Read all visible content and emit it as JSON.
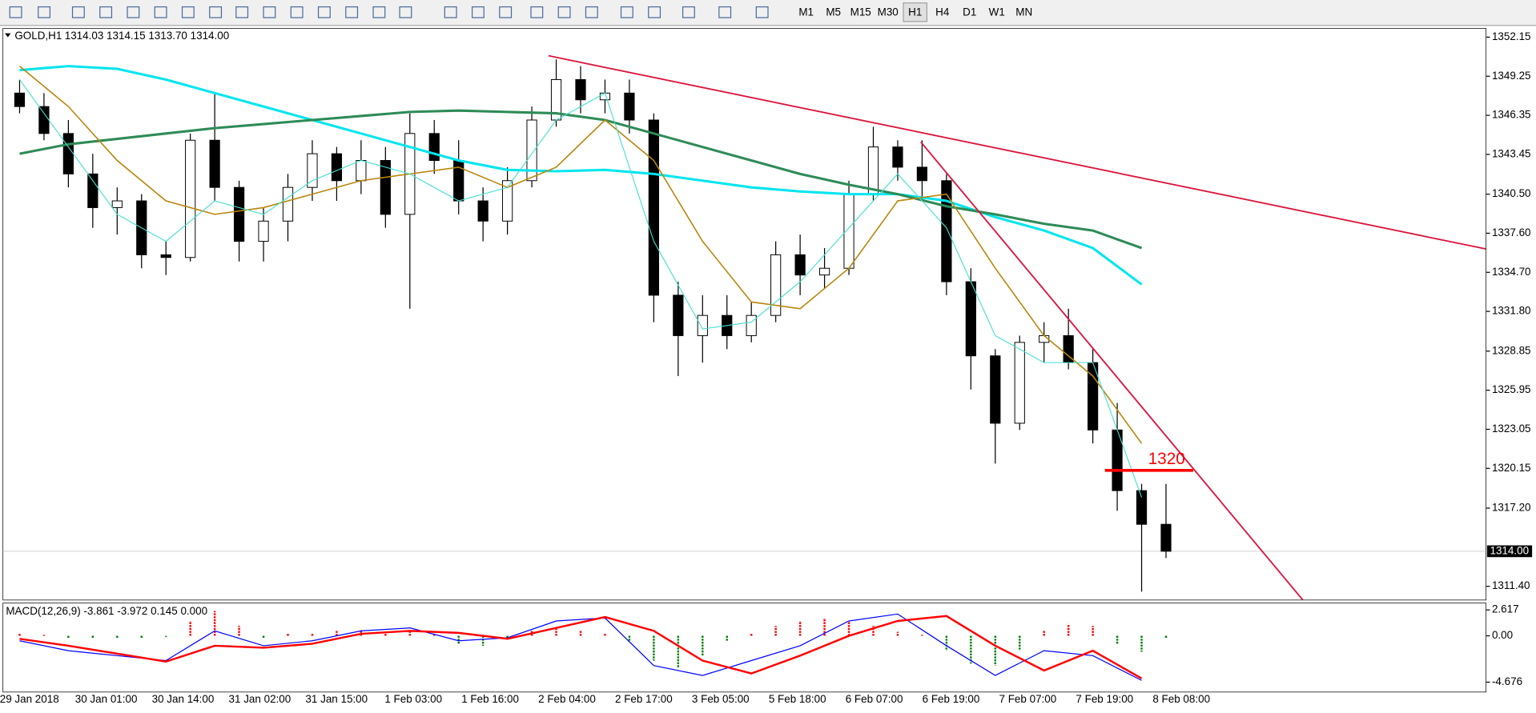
{
  "toolbar": {
    "timeframes": [
      "M1",
      "M5",
      "M15",
      "M30",
      "H1",
      "H4",
      "D1",
      "W1",
      "MN"
    ],
    "active": "H1"
  },
  "chart_data": {
    "type": "candlestick",
    "symbol": "GOLD,H1",
    "quote": "1314.03 1314.15 1313.70 1314.00",
    "ylim": [
      1310.38,
      1352.8
    ],
    "yticks": [
      {
        "value": 1352.15,
        "label": "1352.15"
      },
      {
        "value": 1349.25,
        "label": "1349.25"
      },
      {
        "value": 1346.35,
        "label": "1346.35"
      },
      {
        "value": 1343.45,
        "label": "1343.45"
      },
      {
        "value": 1340.5,
        "label": "1340.50"
      },
      {
        "value": 1337.6,
        "label": "1337.60"
      },
      {
        "value": 1334.7,
        "label": "1334.70"
      },
      {
        "value": 1331.8,
        "label": "1331.80"
      },
      {
        "value": 1328.85,
        "label": "1328.85"
      },
      {
        "value": 1325.95,
        "label": "1325.95"
      },
      {
        "value": 1323.05,
        "label": "1323.05"
      },
      {
        "value": 1320.15,
        "label": "1320.15"
      },
      {
        "value": 1317.2,
        "label": "1317.20"
      },
      {
        "value": 1311.4,
        "label": "1311.40"
      }
    ],
    "current_price": {
      "value": 1314,
      "label": "1314.00"
    },
    "x_labels": [
      "29 Jan 2018",
      "30 Jan 01:00",
      "30 Jan 14:00",
      "31 Jan 02:00",
      "31 Jan 15:00",
      "1 Feb 03:00",
      "1 Feb 16:00",
      "2 Feb 04:00",
      "2 Feb 17:00",
      "3 Feb 05:00",
      "5 Feb 18:00",
      "6 Feb 07:00",
      "6 Feb 19:00",
      "7 Feb 07:00",
      "7 Feb 19:00",
      "8 Feb 08:00"
    ],
    "candles": {
      "open": [
        1348,
        1347,
        1345,
        1342,
        1339.5,
        1340,
        1336,
        1335.8,
        1344.5,
        1341,
        1337,
        1338.5,
        1341,
        1343.5,
        1341.5,
        1343,
        1339,
        1345,
        1343,
        1340,
        1338.5,
        1341.5,
        1346,
        1349,
        1347.5,
        1348,
        1346,
        1333,
        1330,
        1331.5,
        1330,
        1331.5,
        1336,
        1334.5,
        1335,
        1340.5,
        1344,
        1342.5,
        1341.5,
        1334,
        1328.5,
        1323.5,
        1329.5,
        1330,
        1328,
        1323,
        1318.5,
        1316
      ],
      "high": [
        1349,
        1348,
        1346,
        1343.5,
        1341,
        1340.5,
        1337,
        1345,
        1348,
        1341.5,
        1339.5,
        1342,
        1344.5,
        1344,
        1344.5,
        1344,
        1346.5,
        1346,
        1344.5,
        1341,
        1342.5,
        1347,
        1350.5,
        1350,
        1349,
        1349,
        1346.5,
        1334,
        1333,
        1333,
        1332.5,
        1337,
        1337.5,
        1336.5,
        1341.5,
        1345.5,
        1344.5,
        1344.5,
        1342,
        1335,
        1329,
        1330,
        1331,
        1332,
        1329,
        1325,
        1319,
        1319
      ],
      "low": [
        1346.5,
        1344.5,
        1341,
        1338,
        1337.5,
        1335,
        1334.5,
        1335.5,
        1340,
        1335.5,
        1335.5,
        1337,
        1340,
        1340,
        1340.5,
        1338,
        1332,
        1342,
        1339,
        1337,
        1337.5,
        1341,
        1345.5,
        1346.5,
        1346.5,
        1345,
        1331,
        1327,
        1328,
        1329,
        1329.5,
        1331,
        1333,
        1333.5,
        1334.5,
        1340,
        1341.5,
        1340,
        1333,
        1326,
        1320.5,
        1323,
        1328,
        1327.5,
        1322,
        1317,
        1311,
        1313.5
      ],
      "close": [
        1347,
        1345,
        1342,
        1339.5,
        1340,
        1336,
        1335.8,
        1344.5,
        1341,
        1337,
        1338.5,
        1341,
        1343.5,
        1341.5,
        1343,
        1339,
        1345,
        1343,
        1340,
        1338.5,
        1341.5,
        1346,
        1349,
        1347.5,
        1348,
        1346,
        1333,
        1330,
        1331.5,
        1330,
        1331.5,
        1336,
        1334.5,
        1335,
        1340.5,
        1344,
        1342.5,
        1341.5,
        1334,
        1328.5,
        1323.5,
        1329.5,
        1330,
        1328,
        1323,
        1318.5,
        1316,
        1314
      ]
    },
    "series": [
      {
        "color": "#00e5ee",
        "width": 2.5,
        "values": [
          1349.7,
          1350,
          1349.8,
          1349,
          1348,
          1347,
          1346,
          1345,
          1344,
          1343,
          1342.3,
          1342.2,
          1342.3,
          1342,
          1341.5,
          1341,
          1340.7,
          1340.5,
          1340.5,
          1340,
          1338.8,
          1337.8,
          1336.5,
          1333.8
        ]
      },
      {
        "color": "#2e8b57",
        "width": 2.5,
        "values": [
          1343.5,
          1344.2,
          1344.6,
          1345,
          1345.4,
          1345.7,
          1346,
          1346.3,
          1346.6,
          1346.7,
          1346.6,
          1346.5,
          1346,
          1345,
          1344,
          1343,
          1342,
          1341.2,
          1340.5,
          1339.6,
          1339,
          1338.3,
          1337.8,
          1336.5
        ]
      },
      {
        "color": "#b8860b",
        "width": 1.3,
        "values": [
          1350,
          1347,
          1343,
          1340,
          1339,
          1339.5,
          1340.5,
          1341.5,
          1342,
          1342.5,
          1341,
          1342.5,
          1346,
          1343,
          1337,
          1332.5,
          1332,
          1335,
          1340,
          1340.5,
          1335,
          1330,
          1327,
          1322
        ]
      },
      {
        "color": "#40e0d0",
        "width": 0.9,
        "values": [
          1349,
          1344,
          1339,
          1337,
          1340,
          1339,
          1341.5,
          1343,
          1342,
          1340,
          1341,
          1346,
          1348,
          1337,
          1330.5,
          1331,
          1334,
          1338,
          1342,
          1338,
          1330,
          1328,
          1328,
          1318
        ]
      }
    ],
    "trendlines": [
      {
        "color": "#dc143c",
        "values": [
          1350.77,
          1336.43
        ]
      },
      {
        "color": "#dc143c",
        "values": [
          1344.37,
          1310.38
        ]
      }
    ],
    "level": {
      "label": "1320",
      "value": 1320,
      "color": "#ff0000"
    },
    "macd": {
      "title": "MACD(12,26,9) -3.861 -3.972 0.145 0.000",
      "ylim": [
        -5.676,
        3.317
      ],
      "yticks": [
        {
          "value": 2.617,
          "label": "2.617"
        },
        {
          "value": 0,
          "label": "0.00"
        },
        {
          "value": -4.676,
          "label": "-4.676"
        }
      ],
      "histogram": {
        "up_color": "#ff0000",
        "down_color": "#008000",
        "values": [
          0.2,
          0.1,
          -0.2,
          -0.3,
          -0.2,
          -0.2,
          -0.1,
          1.5,
          2.5,
          1.0,
          -0.3,
          0.2,
          0.3,
          0.5,
          0.6,
          0.4,
          0.5,
          0.3,
          -0.8,
          -1.0,
          -0.2,
          0.5,
          0.7,
          0.5,
          0.3,
          -0.5,
          -2.5,
          -3.2,
          -2.0,
          -0.5,
          0.3,
          1.0,
          1.5,
          1.8,
          1.5,
          1.0,
          0.4,
          0.1,
          -1.5,
          -2.8,
          -3.0,
          -1.5,
          0.5,
          1.2,
          1.0,
          -0.8,
          -1.6,
          -0.3
        ]
      },
      "series": [
        {
          "color": "#0000ff",
          "width": 1,
          "values": [
            -0.5,
            -1.5,
            -2.0,
            -2.5,
            0.5,
            -1.0,
            -0.5,
            0.5,
            0.8,
            -0.5,
            -0.2,
            1.5,
            1.8,
            -3.0,
            -4.0,
            -2.5,
            -1.0,
            1.5,
            2.2,
            -1.0,
            -4.0,
            -1.5,
            -2.0,
            -4.5
          ]
        },
        {
          "color": "#ff0000",
          "width": 2,
          "values": [
            -0.3,
            -1.0,
            -1.8,
            -2.6,
            -1.0,
            -1.2,
            -0.8,
            0.2,
            0.5,
            0.3,
            -0.3,
            0.8,
            1.9,
            0.5,
            -2.5,
            -3.8,
            -2.0,
            0.0,
            1.5,
            2.0,
            -1.0,
            -3.5,
            -1.5,
            -4.3
          ]
        }
      ]
    }
  }
}
